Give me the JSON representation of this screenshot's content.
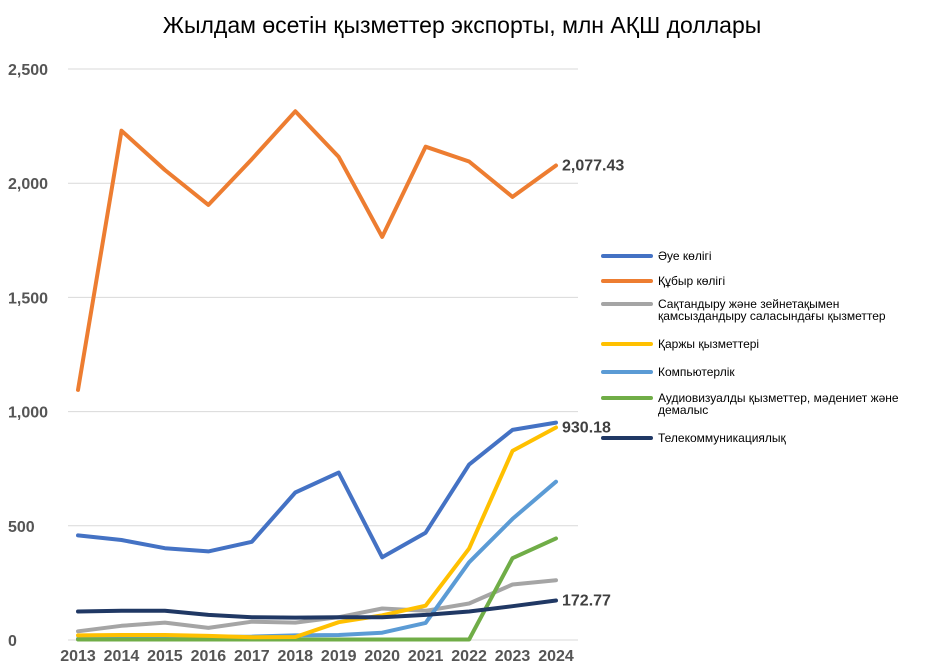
{
  "chart_data": {
    "type": "line",
    "title": "Жылдам өсетін қызметтер экспорты, млн АҚШ доллары",
    "x": [
      "2013",
      "2014",
      "2015",
      "2016",
      "2017",
      "2018",
      "2019",
      "2020",
      "2021",
      "2022",
      "2023",
      "2024"
    ],
    "yticks": [
      "0",
      "500",
      "1,000",
      "1,500",
      "2,000",
      "2,500"
    ],
    "ylim": [
      0,
      2500
    ],
    "grid": true,
    "legend_position": "right",
    "series": [
      {
        "name": "Әуе көлігі",
        "color": "#4472C4",
        "values": [
          458,
          438,
          402,
          388,
          430,
          646,
          733,
          362,
          470,
          768,
          920,
          952
        ]
      },
      {
        "name": "Құбыр көлігі",
        "color": "#ED7D31",
        "values": [
          1095,
          2230,
          2058,
          1905,
          2105,
          2315,
          2115,
          1765,
          2160,
          2095,
          1940,
          2077.43
        ],
        "end_label": "2,077.43"
      },
      {
        "name": "Сақтандыру және зейнетақымен қамсыздандыру саласындағы қызметтер",
        "color": "#A5A5A5",
        "values": [
          38,
          62,
          76,
          53,
          80,
          76,
          100,
          138,
          128,
          160,
          243,
          262
        ]
      },
      {
        "name": "Қаржы қызметтері",
        "color": "#FFC000",
        "values": [
          20,
          22,
          22,
          18,
          12,
          13,
          78,
          108,
          150,
          400,
          828,
          930.18
        ],
        "end_label": "930.18"
      },
      {
        "name": "Компьютерлік",
        "color": "#5B9BD5",
        "values": [
          5,
          8,
          12,
          14,
          15,
          20,
          22,
          32,
          75,
          340,
          530,
          693
        ]
      },
      {
        "name": "Аудиовизуалды қызметтер, мәдениет және демалыс",
        "color": "#70AD47",
        "values": [
          2,
          2,
          2,
          2,
          2,
          2,
          2,
          2,
          2,
          2,
          358,
          445
        ]
      },
      {
        "name": "Телекоммуникациялық",
        "color": "#203864",
        "values": [
          125,
          128,
          128,
          110,
          100,
          98,
          100,
          100,
          110,
          125,
          148,
          172.77
        ],
        "end_label": "172.77"
      }
    ]
  }
}
